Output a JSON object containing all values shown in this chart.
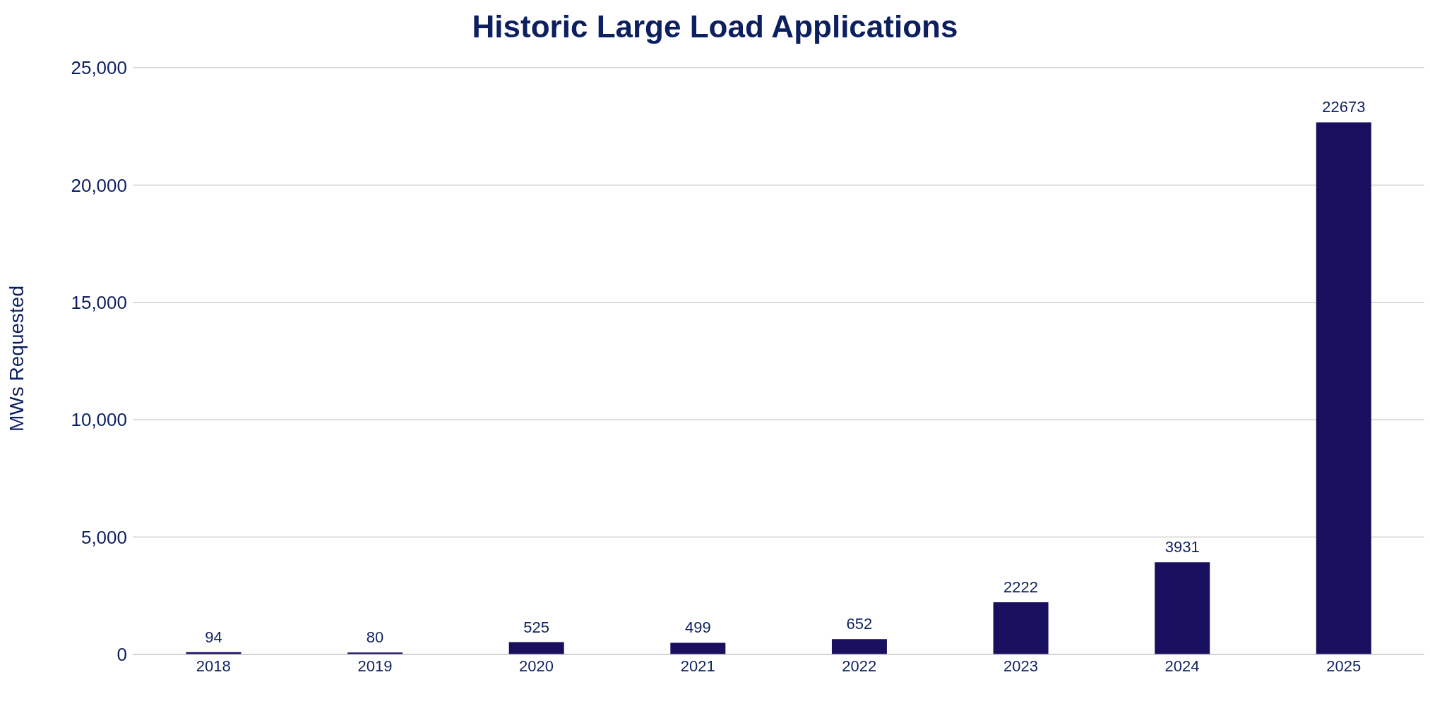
{
  "chart_data": {
    "type": "bar",
    "title": "Historic Large Load Applications",
    "ylabel": "MWs Requested",
    "categories": [
      "2018",
      "2019",
      "2020",
      "2021",
      "2022",
      "2023",
      "2024",
      "2025"
    ],
    "values": [
      94,
      80,
      525,
      499,
      652,
      2222,
      3931,
      22673
    ],
    "color": "#190f5f",
    "ylim": [
      0,
      25000
    ],
    "yticks": [
      {
        "value": 0,
        "label": "0"
      },
      {
        "value": 5000,
        "label": "5,000"
      },
      {
        "value": 10000,
        "label": "10,000"
      },
      {
        "value": 15000,
        "label": "15,000"
      },
      {
        "value": 20000,
        "label": "20,000"
      },
      {
        "value": 25000,
        "label": "25,000"
      }
    ],
    "grid": "y",
    "data_labels": true,
    "legend": false
  }
}
